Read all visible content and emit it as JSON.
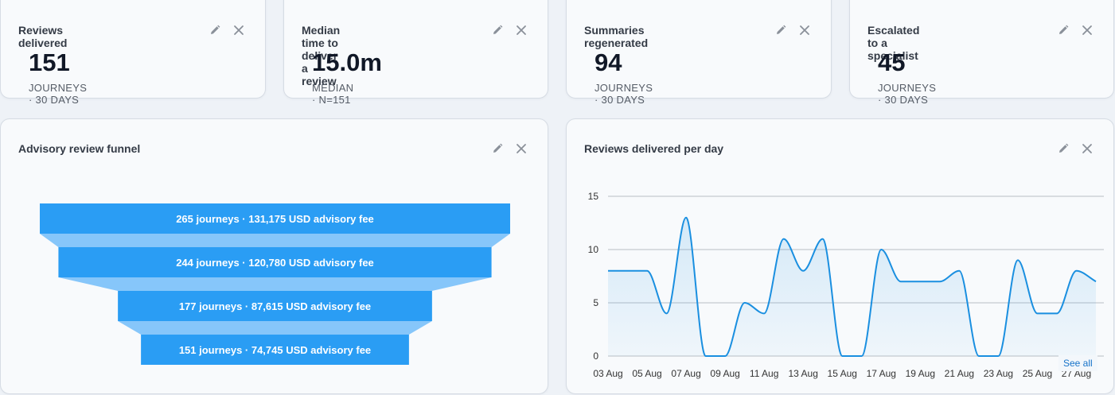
{
  "kpis": [
    {
      "title": "Reviews delivered",
      "value": "151",
      "caption": "JOURNEYS · 30 DAYS"
    },
    {
      "title": "Median time to deliver a review",
      "value": "15.0m",
      "caption": "MEDIAN · N=151"
    },
    {
      "title": "Summaries regenerated",
      "value": "94",
      "caption": "JOURNEYS · 30 DAYS"
    },
    {
      "title": "Escalated to a specialist",
      "value": "45",
      "caption": "JOURNEYS · 30 DAYS"
    }
  ],
  "funnel": {
    "title": "Advisory review funnel",
    "stages": [
      {
        "label": "265 journeys · 131,175 USD advisory fee",
        "journeys": 265
      },
      {
        "label": "244 journeys · 120,780 USD advisory fee",
        "journeys": 244
      },
      {
        "label": "177 journeys · 87,615 USD advisory fee",
        "journeys": 177
      },
      {
        "label": "151 journeys · 74,745 USD advisory fee",
        "journeys": 151
      }
    ]
  },
  "line_chart": {
    "type": "line",
    "title": "Reviews delivered per day",
    "categories": [
      "03 Aug",
      null,
      "05 Aug",
      null,
      "07 Aug",
      null,
      "09 Aug",
      null,
      "11 Aug",
      null,
      "13 Aug",
      null,
      "15 Aug",
      null,
      "17 Aug",
      null,
      "19 Aug",
      null,
      "21 Aug",
      null,
      "23 Aug",
      null,
      "25 Aug",
      null,
      "27 Aug",
      null
    ],
    "values": [
      8,
      8,
      8,
      4,
      13,
      0,
      0,
      5,
      4,
      11,
      8,
      11,
      0,
      0,
      10,
      7,
      7,
      7,
      8,
      0,
      0,
      9,
      4,
      4,
      8,
      7
    ],
    "color": "#1a8fe0",
    "ylim": [
      0,
      15
    ],
    "yticks": [
      0,
      5,
      10,
      15
    ],
    "grid": true,
    "link": "See all"
  }
}
